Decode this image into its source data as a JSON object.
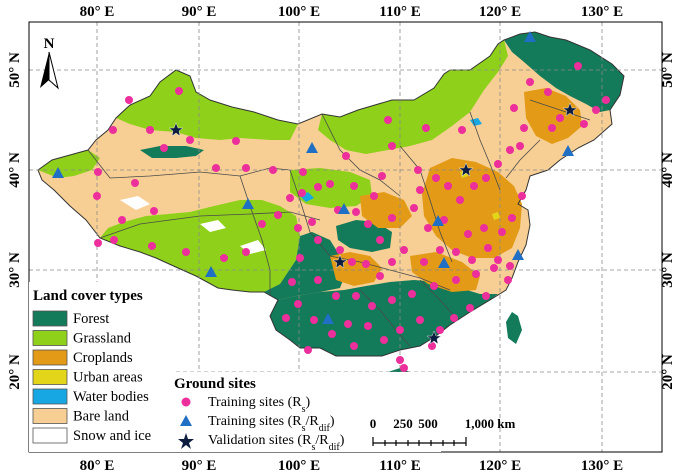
{
  "map": {
    "lon_ticks": [
      "80° E",
      "90° E",
      "100° E",
      "110° E",
      "120° E",
      "130° E"
    ],
    "lat_ticks": [
      "50° N",
      "40° N",
      "30° N",
      "20° N"
    ],
    "north_label": "N",
    "colors": {
      "forest": "#137a5a",
      "grassland": "#8fd11a",
      "croplands": "#e39a17",
      "urban": "#e2d51a",
      "water": "#17a8e4",
      "bare": "#f7cf94",
      "snow": "#ffffff",
      "training_rs": "#ec2f9b",
      "training_rsrdif": "#1f6fc4",
      "validation": "#0d1d3f"
    }
  },
  "land_cover_legend": {
    "title": "Land cover types",
    "items": [
      {
        "label": "Forest",
        "color": "#137a5a"
      },
      {
        "label": "Grassland",
        "color": "#8fd11a"
      },
      {
        "label": "Croplands",
        "color": "#e39a17"
      },
      {
        "label": "Urban areas",
        "color": "#e2d51a"
      },
      {
        "label": "Water bodies",
        "color": "#17a8e4"
      },
      {
        "label": "Bare land",
        "color": "#f7cf94"
      },
      {
        "label": "Snow and ice",
        "color": "#ffffff"
      }
    ]
  },
  "ground_sites_legend": {
    "title": "Ground sites",
    "items": [
      {
        "symbol": "circle",
        "text": "Training sites (R",
        "sub": "s",
        "after": ")",
        "color": "#ec2f9b"
      },
      {
        "symbol": "triangle",
        "text": "Training sites (R",
        "sub": "s",
        "mid": "/R",
        "sub2": "dif",
        "after": ")",
        "color": "#1f6fc4"
      },
      {
        "symbol": "star",
        "text": "Validation sites (R",
        "sub": "s",
        "mid": "/R",
        "sub2": "dif",
        "after": ")",
        "color": "#0d1d3f"
      }
    ]
  },
  "scale_bar": {
    "labels": [
      "0",
      "250",
      "500",
      "1,000 km"
    ]
  }
}
